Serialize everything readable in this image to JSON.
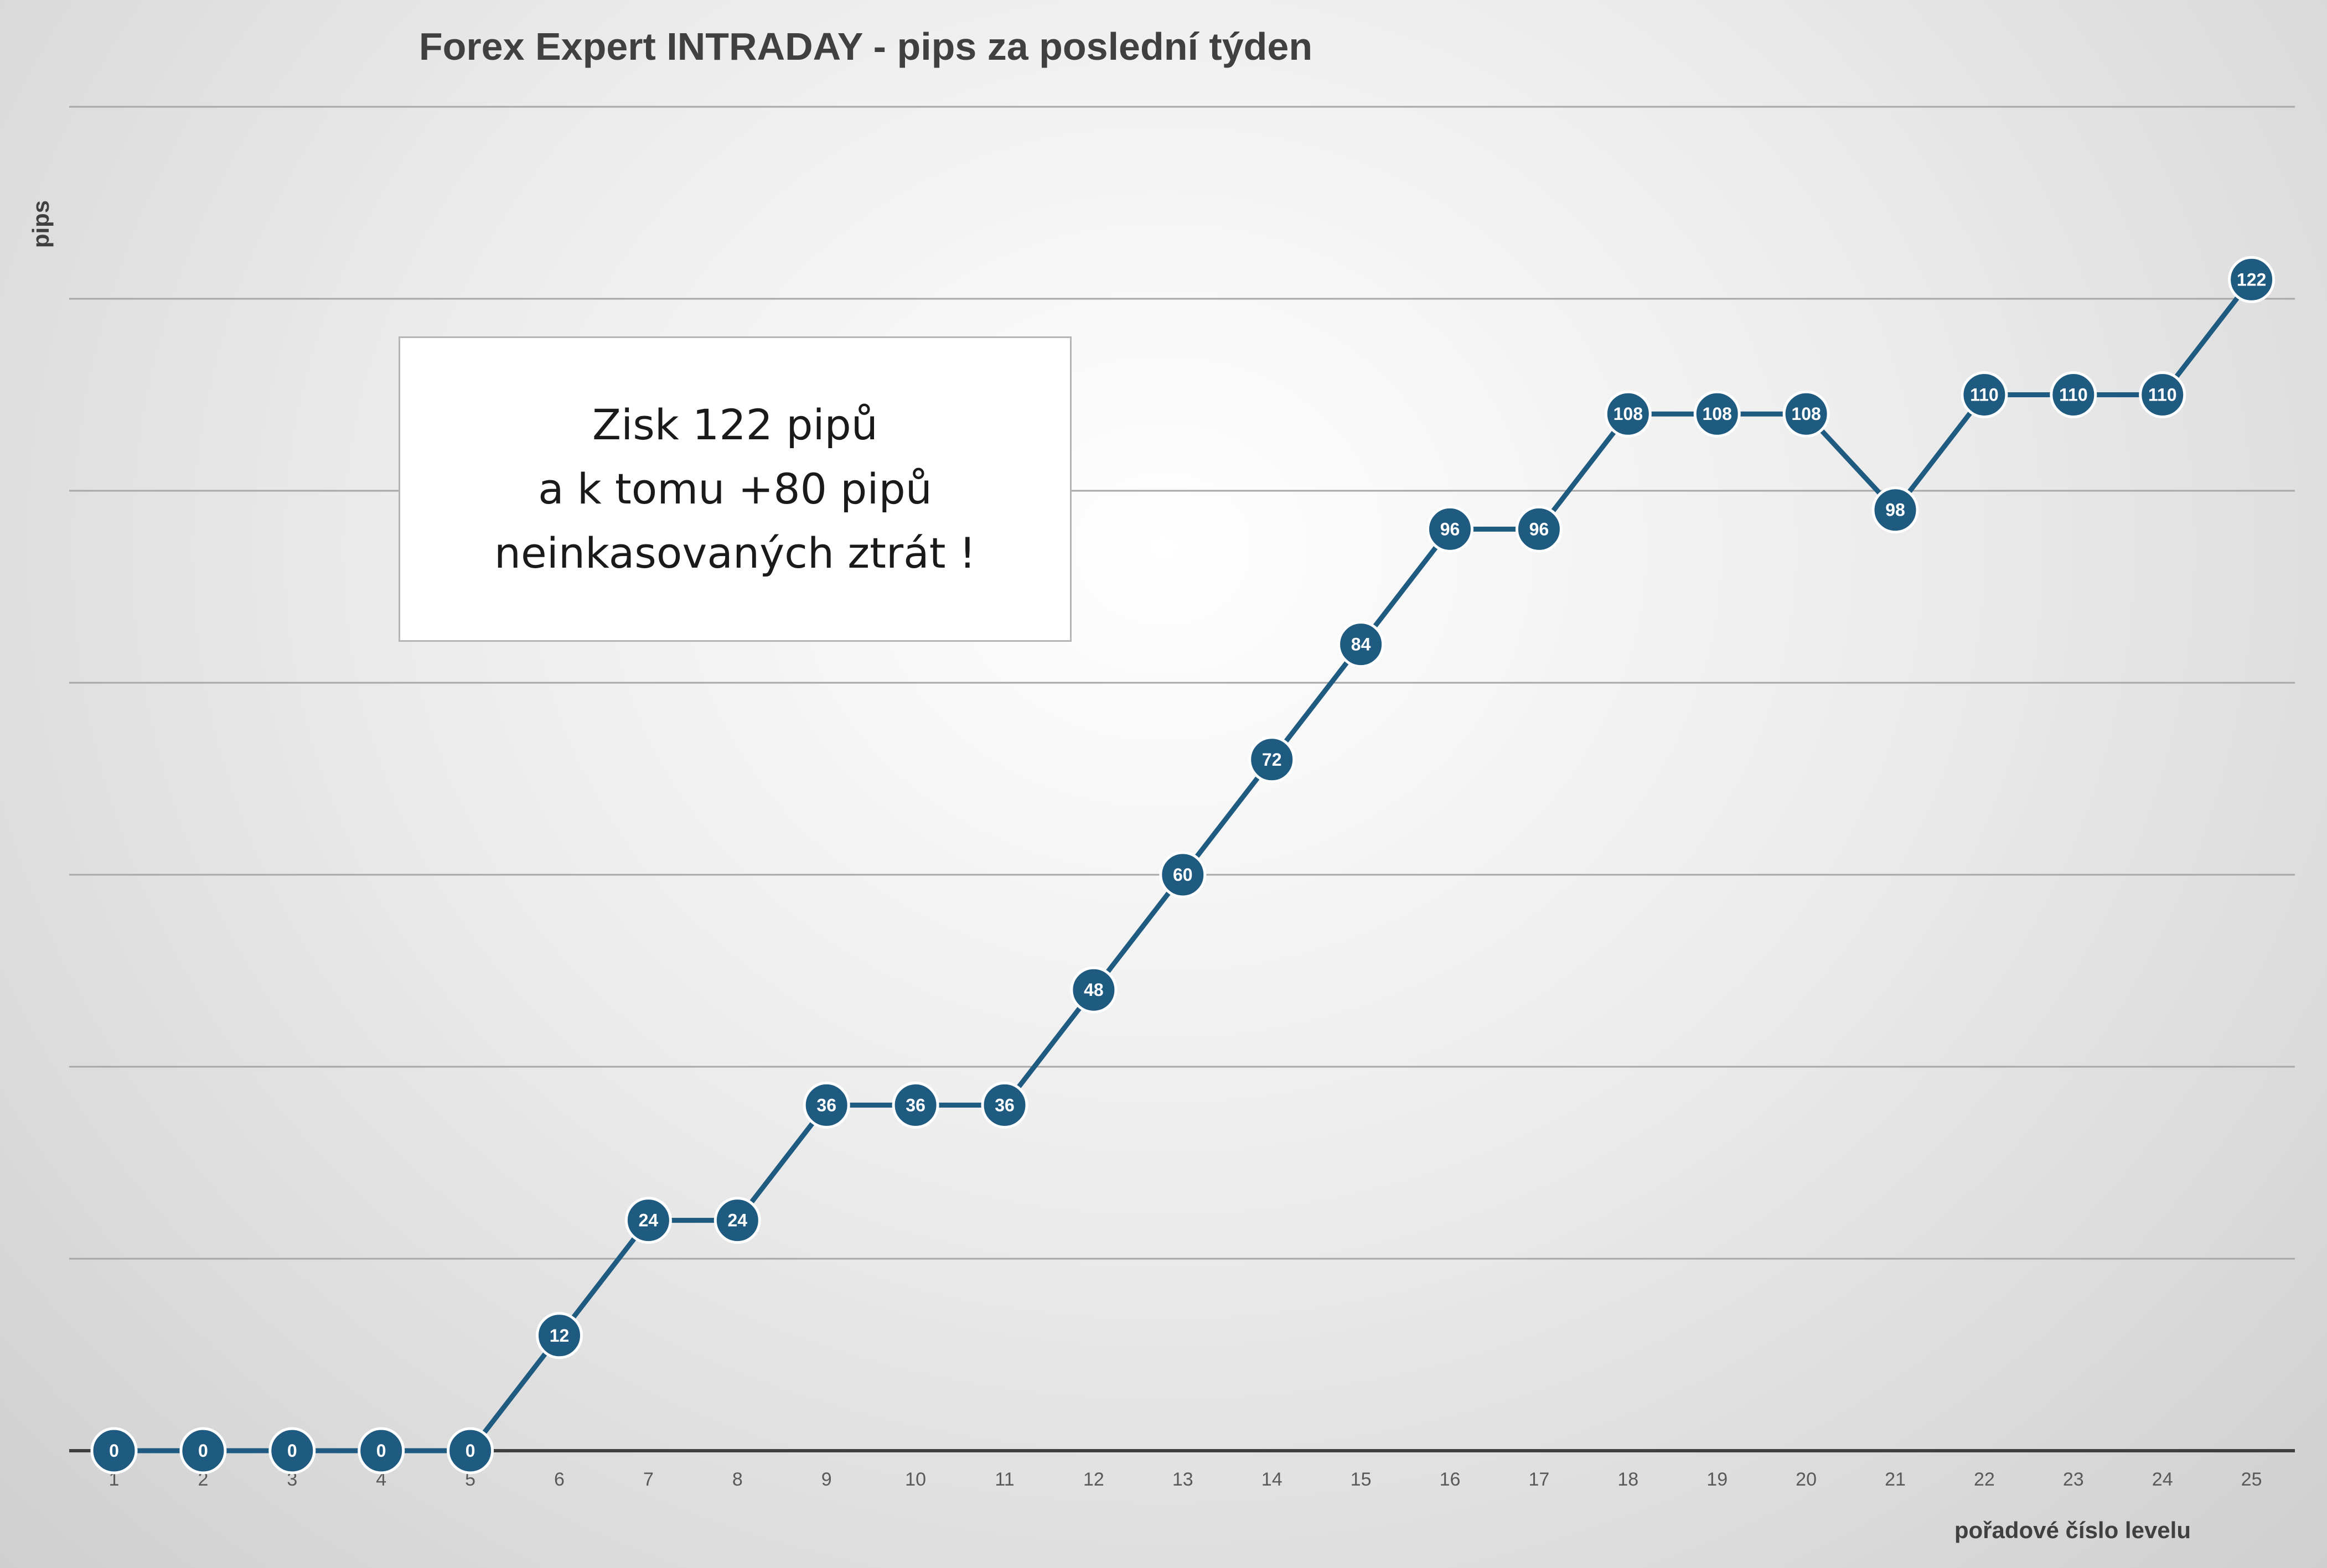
{
  "chart_data": {
    "type": "line",
    "title": "Forex Expert INTRADAY - pips za poslední týden",
    "xlabel": "pořadové číslo levelu",
    "ylabel": "pips",
    "categories": [
      "1",
      "2",
      "3",
      "4",
      "5",
      "6",
      "7",
      "8",
      "9",
      "10",
      "11",
      "12",
      "13",
      "14",
      "15",
      "16",
      "17",
      "18",
      "19",
      "20",
      "21",
      "22",
      "23",
      "24",
      "25"
    ],
    "series": [
      {
        "values": [
          0,
          0,
          0,
          0,
          0,
          12,
          24,
          24,
          36,
          36,
          36,
          48,
          60,
          72,
          84,
          96,
          96,
          108,
          108,
          108,
          98,
          110,
          110,
          110,
          122
        ],
        "color": "#1f5b80"
      }
    ],
    "ylim": [
      0,
      140
    ],
    "y_gridline_step": 20,
    "y_tick_labels_shown": false,
    "grid": true,
    "legend": "none",
    "data_labels": true,
    "annotation": {
      "lines": [
        "Zisk 122 pipů",
        "a k tomu +80 pipů",
        "neinkasovaných ztrát !"
      ]
    }
  }
}
